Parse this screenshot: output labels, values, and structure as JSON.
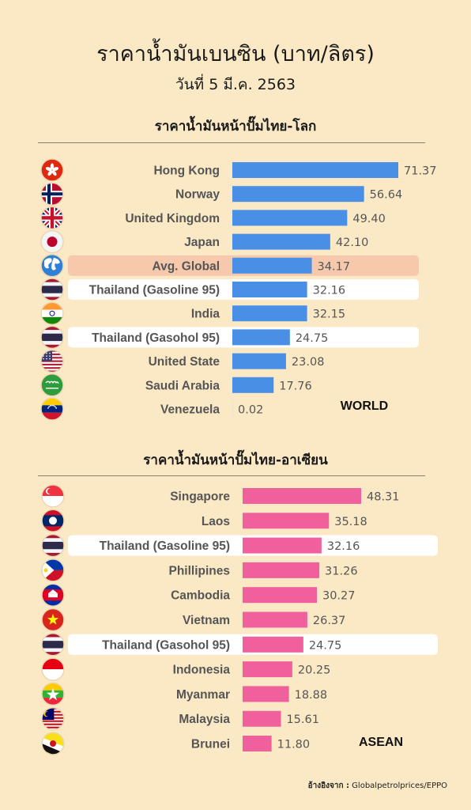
{
  "header": {
    "title": "ราคาน้ำมันเบนซิน (บาท/ลิตร)",
    "subtitle": "วันที่ 5 มี.ค. 2563"
  },
  "source": {
    "label": "อ้างอิงจาก :",
    "text": "Globalpetrolprices/EPPO"
  },
  "chart_data": [
    {
      "type": "bar",
      "orientation": "horizontal",
      "title": "ราคาน้ำมันหน้าปั๊มไทย-โลก",
      "tag": "WORLD",
      "bar_color": "#4a8fe6",
      "categories": [
        "Hong Kong",
        "Norway",
        "United Kingdom",
        "Japan",
        "Avg. Global",
        "Thailand (Gasoline 95)",
        "India",
        "Thailand (Gasohol 95)",
        "United State",
        "Saudi Arabia",
        "Venezuela"
      ],
      "values": [
        71.37,
        56.64,
        49.4,
        42.1,
        34.17,
        32.16,
        32.15,
        24.75,
        23.08,
        17.76,
        0.02
      ],
      "value_labels": [
        "71.37",
        "56.64",
        "49.40",
        "42.10",
        "34.17",
        "32.16",
        "32.15",
        "24.75",
        "23.08",
        "17.76",
        "0.02"
      ],
      "highlight": [
        "none",
        "none",
        "none",
        "none",
        "peach",
        "white",
        "none",
        "white",
        "none",
        "none",
        "none"
      ],
      "flags": [
        "hong-kong-flag-icon",
        "norway-flag-icon",
        "united-kingdom-flag-icon",
        "japan-flag-icon",
        "globe-icon",
        "thailand-flag-icon",
        "india-flag-icon",
        "thailand-flag-icon",
        "united-states-flag-icon",
        "saudi-arabia-flag-icon",
        "venezuela-flag-icon"
      ],
      "xlim": [
        0,
        71.37
      ]
    },
    {
      "type": "bar",
      "orientation": "horizontal",
      "title": "ราคาน้ำมันหน้าปั๊มไทย-อาเซียน",
      "tag": "ASEAN",
      "bar_color": "#f0609c",
      "categories": [
        "Singapore",
        "Laos",
        "Thailand (Gasoline 95)",
        "Phillipines",
        "Cambodia",
        "Vietnam",
        "Thailand (Gasohol 95)",
        "Indonesia",
        "Myanmar",
        "Malaysia",
        "Brunei"
      ],
      "values": [
        48.31,
        35.18,
        32.16,
        31.26,
        30.27,
        26.37,
        24.75,
        20.25,
        18.88,
        15.61,
        11.8
      ],
      "value_labels": [
        "48.31",
        "35.18",
        "32.16",
        "31.26",
        "30.27",
        "26.37",
        "24.75",
        "20.25",
        "18.88",
        "15.61",
        "11.80"
      ],
      "highlight": [
        "none",
        "none",
        "white",
        "none",
        "none",
        "none",
        "white",
        "none",
        "none",
        "none",
        "none"
      ],
      "flags": [
        "singapore-flag-icon",
        "laos-flag-icon",
        "thailand-flag-icon",
        "philippines-flag-icon",
        "cambodia-flag-icon",
        "vietnam-flag-icon",
        "thailand-flag-icon",
        "indonesia-flag-icon",
        "myanmar-flag-icon",
        "malaysia-flag-icon",
        "brunei-flag-icon"
      ],
      "xlim": [
        0,
        48.31
      ]
    }
  ]
}
